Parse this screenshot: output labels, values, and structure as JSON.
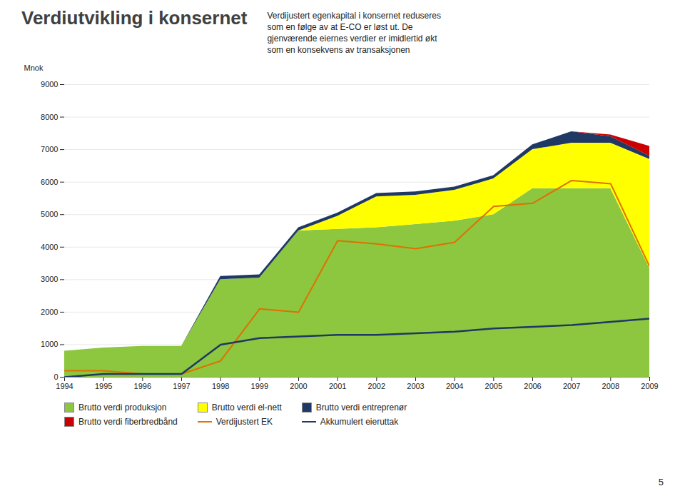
{
  "chart_data": {
    "type": "area",
    "title": "Verdiutvikling i konsernet",
    "annotations": [
      "Verdijustert egenkapital i konsernet reduseres\nsom en følge av at E-CO er løst ut. De\ngjenværende eiernes verdier er imidlertid økt\nsom en konsekvens av transaksjonen",
      "5"
    ],
    "ylabel": "Mnok",
    "x": [
      1994,
      1995,
      1996,
      1997,
      1998,
      1999,
      2000,
      2001,
      2002,
      2003,
      2004,
      2005,
      2006,
      2007,
      2008,
      2009
    ],
    "series": [
      {
        "name": "Brutto verdi produksjon",
        "type": "area",
        "color": "#8dc63f",
        "values": [
          800,
          900,
          950,
          950,
          3000,
          3050,
          4500,
          4550,
          4600,
          4700,
          4800,
          5000,
          5800,
          5800,
          5800,
          3350
        ]
      },
      {
        "name": "Brutto verdi el-nett",
        "type": "area",
        "color": "#ffff00",
        "values": [
          0,
          0,
          0,
          0,
          0,
          0,
          0,
          400,
          950,
          900,
          950,
          1100,
          1200,
          1400,
          1400,
          3350
        ]
      },
      {
        "name": "Brutto verdi entreprenør",
        "type": "area",
        "color": "#1f3864",
        "values": [
          0,
          0,
          0,
          0,
          100,
          100,
          100,
          100,
          100,
          100,
          100,
          100,
          150,
          350,
          200,
          100
        ]
      },
      {
        "name": "Brutto verdi fiberbredbånd",
        "type": "area",
        "color": "#cc0000",
        "values": [
          0,
          0,
          0,
          0,
          0,
          0,
          0,
          0,
          0,
          0,
          0,
          0,
          0,
          0,
          50,
          300
        ]
      },
      {
        "name": "Verdijustert EK",
        "type": "line",
        "color": "#e07000",
        "values": [
          200,
          200,
          100,
          100,
          500,
          2100,
          2000,
          4200,
          4100,
          3950,
          4150,
          5250,
          5350,
          6050,
          5950,
          3400
        ]
      },
      {
        "name": "Akkumulert eieruttak",
        "type": "line",
        "color": "#1f3864",
        "values": [
          0,
          100,
          100,
          100,
          1000,
          1200,
          1250,
          1300,
          1300,
          1350,
          1400,
          1500,
          1550,
          1600,
          1700,
          1800
        ]
      }
    ],
    "stacked": true,
    "xlim": [
      1994,
      2009
    ],
    "xticks": [
      1994,
      1995,
      1996,
      1997,
      1998,
      1999,
      2000,
      2001,
      2002,
      2003,
      2004,
      2005,
      2006,
      2007,
      2008,
      2009
    ],
    "ylim": [
      0,
      9000
    ],
    "yticks": [
      0,
      1000,
      2000,
      3000,
      4000,
      5000,
      6000,
      7000,
      8000,
      9000
    ],
    "grid": true,
    "legend": "bottom"
  }
}
